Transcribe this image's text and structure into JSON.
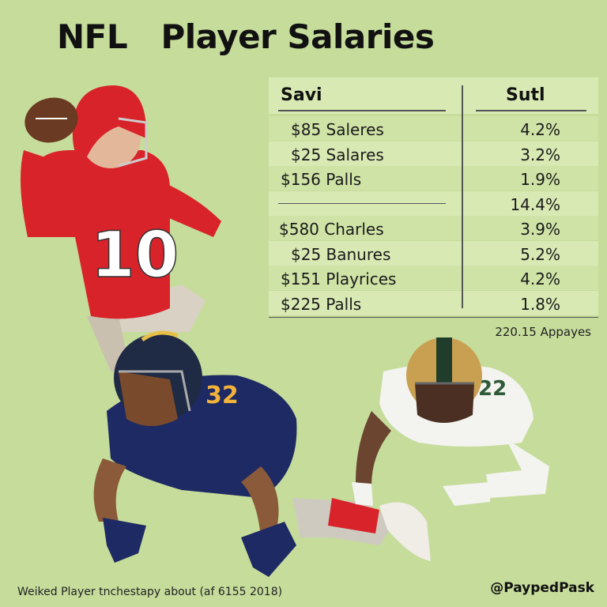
{
  "header": {
    "title": "NFL   Player Salaries"
  },
  "table": {
    "columns": [
      "Savi",
      "Sutl"
    ],
    "rows": [
      [
        "$85 Saleres",
        "4.2%"
      ],
      [
        "$25 Salares",
        "3.2%"
      ],
      [
        "$156 Palls",
        "1.9%"
      ],
      [
        null,
        "14.4%"
      ],
      [
        "$580 Charles",
        "3.9%"
      ],
      [
        "$25 Banures",
        "5.2%"
      ],
      [
        "$151 Playrices",
        "4.2%"
      ],
      [
        "$225 Palls",
        "1.8%"
      ]
    ],
    "note": "220.15 Appayes"
  },
  "footer": {
    "source": "Weiked Player tnchestapy about (af 6155 2018)",
    "handle": "@PaypedPask"
  }
}
